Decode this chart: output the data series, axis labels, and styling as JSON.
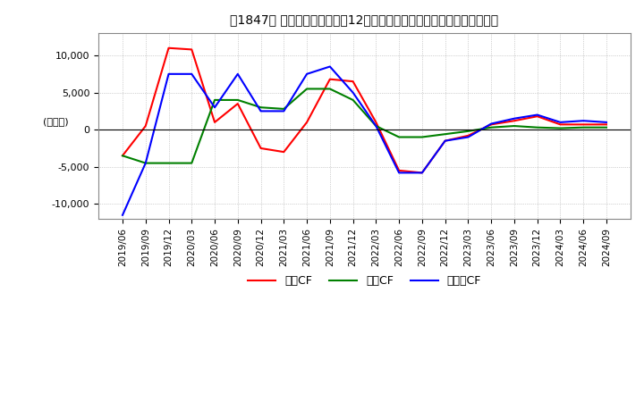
{
  "title": "【1847】 キャッシュフローの12か月移動合計の対前年同期増減額の推移",
  "ylabel": "(百万円)",
  "ylim": [
    -12000,
    13000
  ],
  "yticks": [
    -10000,
    -5000,
    0,
    5000,
    10000
  ],
  "dates": [
    "2019/06",
    "2019/09",
    "2019/12",
    "2020/03",
    "2020/06",
    "2020/09",
    "2020/12",
    "2021/03",
    "2021/06",
    "2021/09",
    "2021/12",
    "2022/03",
    "2022/06",
    "2022/09",
    "2022/12",
    "2023/03",
    "2023/06",
    "2023/09",
    "2023/12",
    "2024/03",
    "2024/06",
    "2024/09"
  ],
  "operating_cf": [
    -3500,
    500,
    11000,
    10800,
    1000,
    3500,
    -2500,
    -3000,
    1000,
    6800,
    6500,
    1000,
    -5500,
    -5800,
    -1500,
    -800,
    700,
    1200,
    1800,
    700,
    700,
    700
  ],
  "investing_cf": [
    -3500,
    -4500,
    -4500,
    -4500,
    4000,
    4000,
    3000,
    2800,
    5500,
    5500,
    4000,
    500,
    -1000,
    -1000,
    -600,
    -200,
    300,
    500,
    300,
    200,
    300,
    300
  ],
  "free_cf": [
    -11500,
    -4500,
    7500,
    7500,
    3000,
    7500,
    2500,
    2500,
    7500,
    8500,
    5000,
    500,
    -5800,
    -5800,
    -1500,
    -1000,
    800,
    1500,
    2000,
    1000,
    1200,
    1000
  ],
  "operating_color": "#ff0000",
  "investing_color": "#008000",
  "free_color": "#0000ff",
  "background_color": "#ffffff",
  "grid_color": "#aaaaaa",
  "legend_labels": [
    "営業CF",
    "投資CF",
    "フリーCF"
  ]
}
